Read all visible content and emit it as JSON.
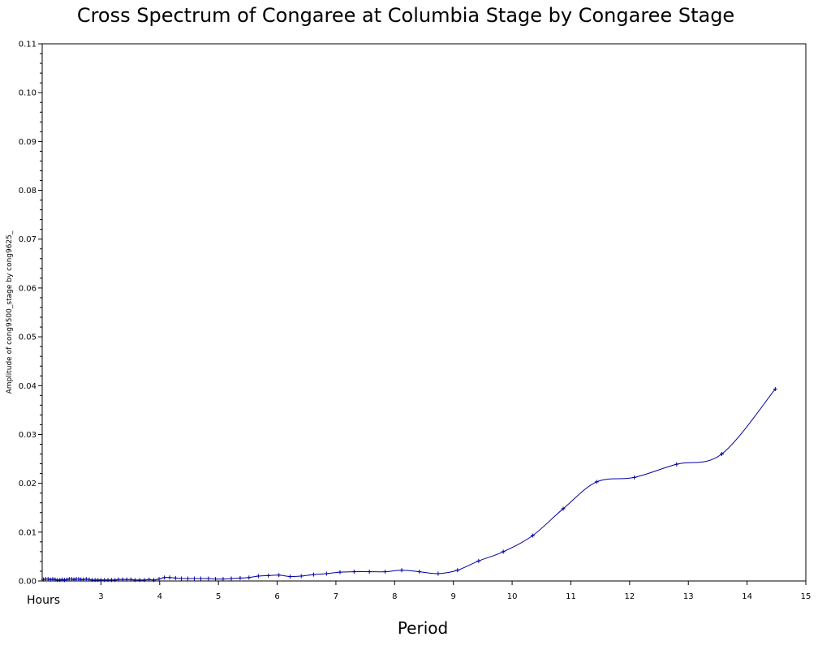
{
  "chart_data": {
    "type": "line",
    "title": "Cross Spectrum of Congaree at Columbia Stage by Congaree Stage",
    "xlabel": "Period",
    "ylabel": "Amplitude of cong9500_stage by cong9625_",
    "x_unit_label": "Hours",
    "xlim": [
      2,
      15
    ],
    "ylim": [
      0,
      0.11
    ],
    "x_ticks": [
      "3",
      "4",
      "5",
      "6",
      "7",
      "8",
      "9",
      "10",
      "11",
      "12",
      "13",
      "14",
      "15"
    ],
    "y_ticks": [
      "0.00",
      "0.01",
      "0.02",
      "0.03",
      "0.04",
      "0.05",
      "0.06",
      "0.07",
      "0.08",
      "0.09",
      "0.10",
      "0.11"
    ],
    "grid": false,
    "series_color": "#0000aa",
    "series": [
      {
        "x": [
          2.02,
          2.06,
          2.1,
          2.14,
          2.18,
          2.22,
          2.26,
          2.3,
          2.34,
          2.38,
          2.42,
          2.46,
          2.5,
          2.54,
          2.58,
          2.62,
          2.66,
          2.7,
          2.75,
          2.8,
          2.85,
          2.9,
          2.95,
          3.0,
          3.06,
          3.12,
          3.18,
          3.24,
          3.3,
          3.37,
          3.44,
          3.51,
          3.58,
          3.66,
          3.74,
          3.82,
          3.9,
          3.99,
          4.08,
          4.17,
          4.27,
          4.37,
          4.48,
          4.59,
          4.7,
          4.83,
          4.95,
          5.08,
          5.22,
          5.37,
          5.52,
          5.68,
          5.85,
          6.03,
          6.22,
          6.41,
          6.62,
          6.84,
          7.07,
          7.31,
          7.57,
          7.84,
          8.12,
          8.42,
          8.74,
          9.07,
          9.43,
          9.85,
          10.35,
          10.87,
          11.44,
          12.08,
          12.8,
          13.57,
          14.48
        ],
        "y": [
          0.0003,
          0.0004,
          0.0004,
          0.0003,
          0.0004,
          0.0003,
          0.0002,
          0.0002,
          0.0003,
          0.0002,
          0.0003,
          0.0004,
          0.0004,
          0.0003,
          0.0004,
          0.0004,
          0.0003,
          0.0003,
          0.0004,
          0.0003,
          0.0002,
          0.0002,
          0.0002,
          0.0002,
          0.0002,
          0.0002,
          0.0002,
          0.0002,
          0.0003,
          0.0003,
          0.0003,
          0.0003,
          0.0002,
          0.0002,
          0.0002,
          0.0003,
          0.0002,
          0.0004,
          0.0007,
          0.0007,
          0.0006,
          0.0005,
          0.0005,
          0.0005,
          0.0005,
          0.0005,
          0.0004,
          0.0004,
          0.0005,
          0.0006,
          0.0007,
          0.001,
          0.0011,
          0.0012,
          0.0009,
          0.001,
          0.0013,
          0.0015,
          0.0018,
          0.0019,
          0.0019,
          0.0019,
          0.0022,
          0.0019,
          0.0015,
          0.0022,
          0.0041,
          0.006,
          0.0093,
          0.0148,
          0.0203,
          0.0212,
          0.0239,
          0.026,
          0.0393
        ]
      }
    ]
  }
}
